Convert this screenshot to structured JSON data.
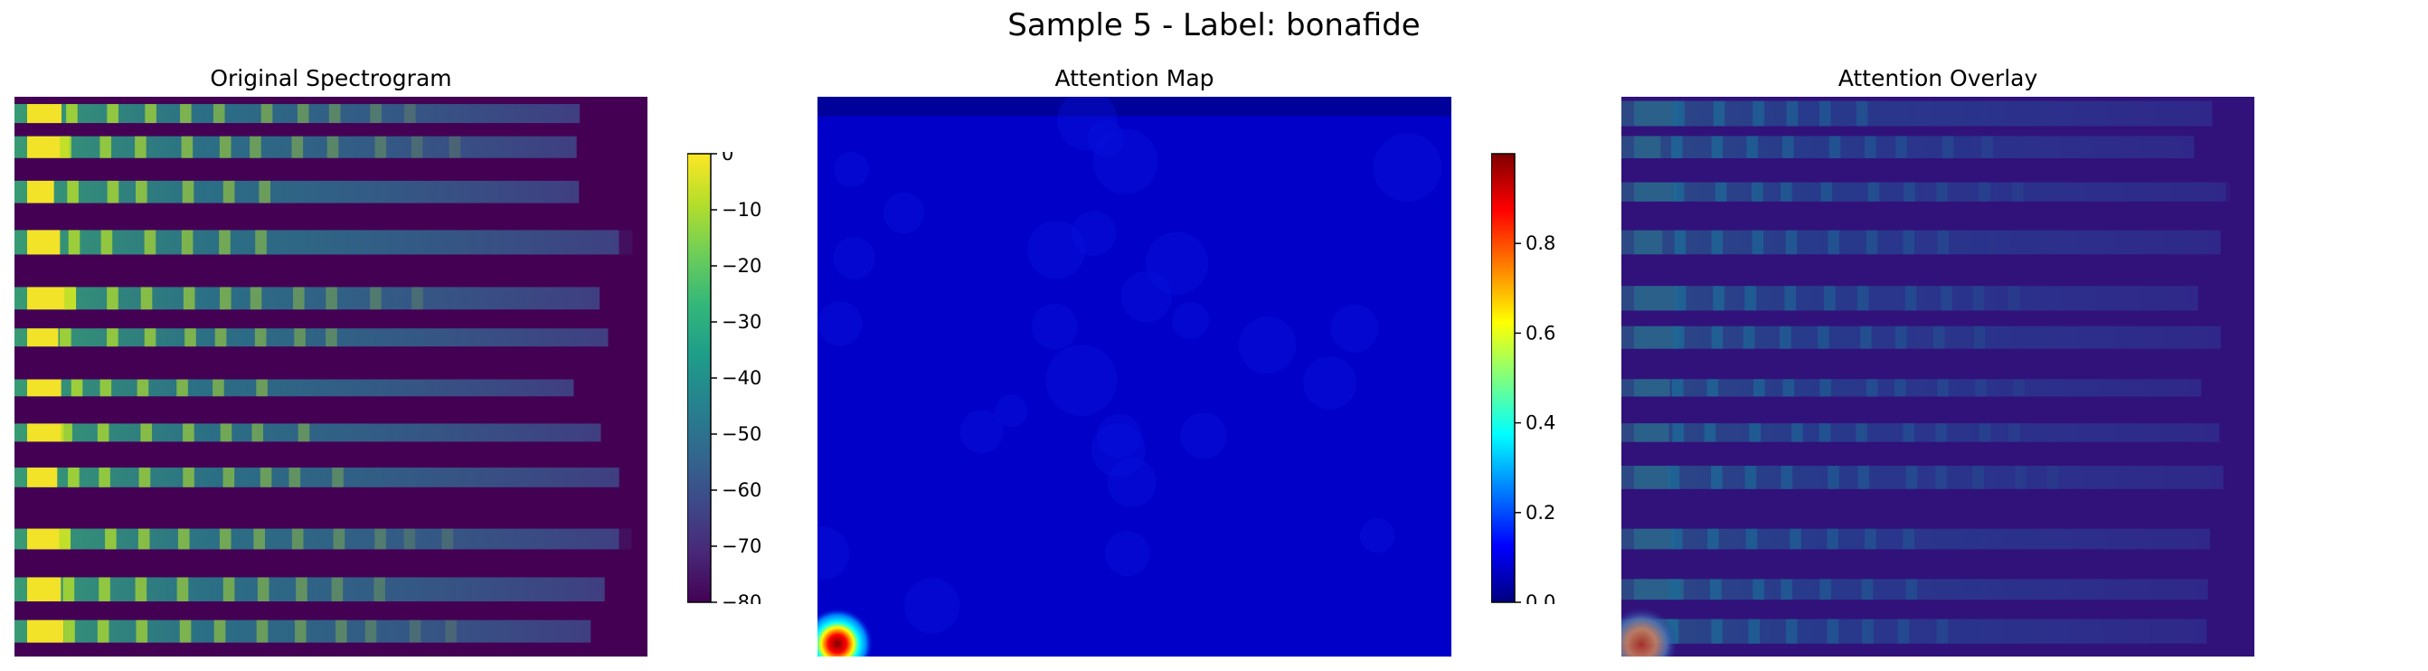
{
  "figure": {
    "title": "Sample 5 - Label: bonafide"
  },
  "chart_data": [
    {
      "type": "heatmap",
      "title": "Original Spectrogram",
      "content": "spectrogram",
      "colormap": "viridis",
      "axes_visible": false,
      "colorbar": {
        "min": -80,
        "max": 0,
        "ticks": [
          0,
          -10,
          -20,
          -30,
          -40,
          -50,
          -60,
          -70,
          -80
        ],
        "tick_labels": [
          "0",
          "−10",
          "−20",
          "−30",
          "−40",
          "−50",
          "−60",
          "−70",
          "−80"
        ]
      }
    },
    {
      "type": "heatmap",
      "title": "Attention Map",
      "content": "attention",
      "colormap": "jet",
      "axes_visible": false,
      "background_value": 0.02,
      "hotspot": {
        "location": "bottom-left corner",
        "peak_value": 1.0
      },
      "colorbar": {
        "min": 0.0,
        "max": 1.0,
        "ticks": [
          0.0,
          0.2,
          0.4,
          0.6,
          0.8
        ],
        "tick_labels": [
          "0.0",
          "0.2",
          "0.4",
          "0.6",
          "0.8"
        ]
      }
    },
    {
      "type": "heatmap",
      "title": "Attention Overlay",
      "content": "overlay",
      "colormap": "jet over viridis",
      "axes_visible": false
    }
  ],
  "colors": {
    "viridis": [
      "#440154",
      "#482878",
      "#3e4989",
      "#31688e",
      "#26828e",
      "#1f9e89",
      "#35b779",
      "#6ece58",
      "#b5de2b",
      "#fde725"
    ],
    "jet": [
      "#00007f",
      "#0000ff",
      "#007fff",
      "#00ffff",
      "#7fff7f",
      "#ffff00",
      "#ff7f00",
      "#ff0000",
      "#7f0000"
    ],
    "overlay_tint": "#1a28a8"
  }
}
